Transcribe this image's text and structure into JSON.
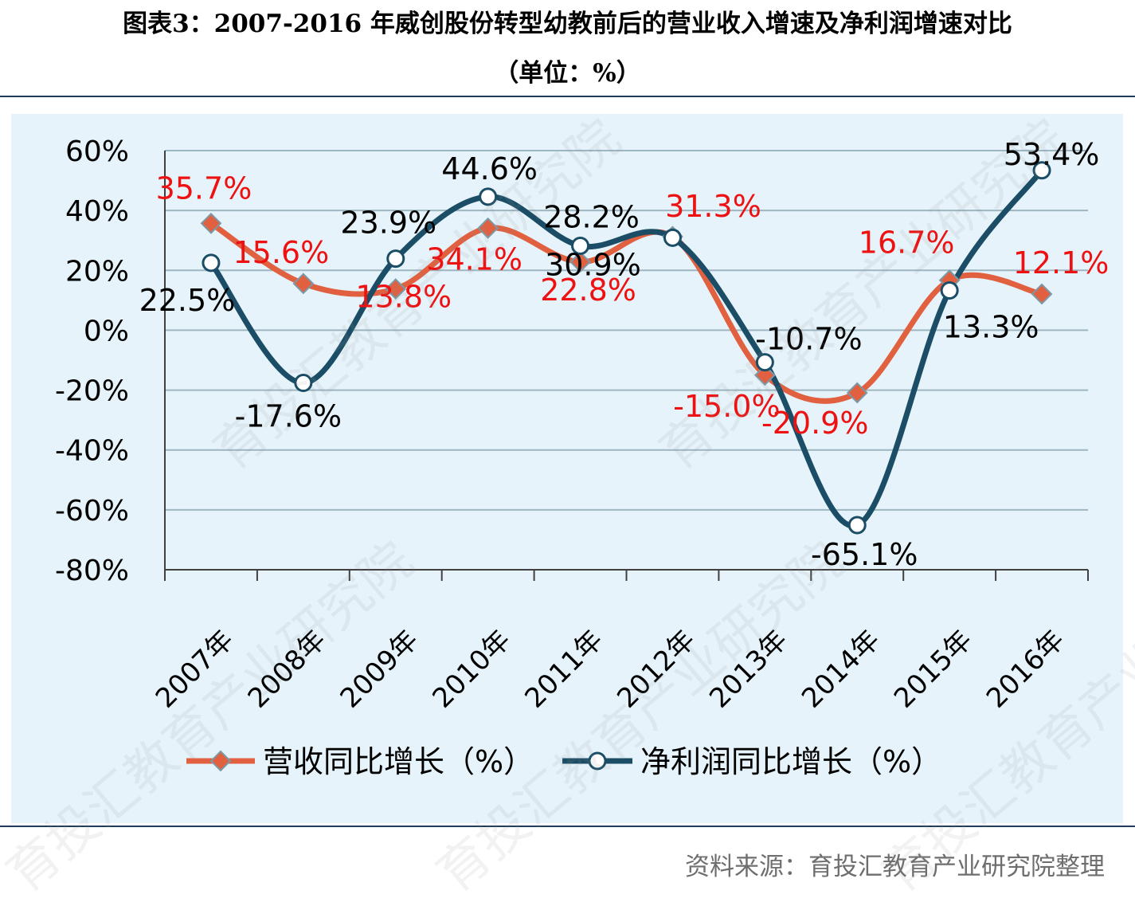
{
  "title_line1": "图表3：2007-2016 年威创股份转型幼教前后的营业收入增速及净利润增速对比",
  "title_line2": "（单位：%）",
  "source": "资料来源：育投汇教育产业研究院整理",
  "watermark": "育投汇教育产业研究院",
  "colors": {
    "panel_bg": "#e6f3fa",
    "revenue": "#e06040",
    "profit": "#1b4e66",
    "revenue_label": "#ee1111",
    "profit_label": "#000000",
    "grid": "#9eb6c2",
    "rule": "#1f3a5a"
  },
  "chart_data": {
    "type": "line",
    "categories": [
      "2007年",
      "2008年",
      "2009年",
      "2010年",
      "2011年",
      "2012年",
      "2013年",
      "2014年",
      "2015年",
      "2016年"
    ],
    "y_ticks": [
      "60%",
      "40%",
      "20%",
      "0%",
      "-20%",
      "-40%",
      "-60%",
      "-80%"
    ],
    "ylim": [
      -80,
      60
    ],
    "grid": true,
    "legend_position": "bottom",
    "series": [
      {
        "name": "营收同比增长（%）",
        "marker": "diamond",
        "values": [
          35.7,
          15.6,
          13.8,
          34.1,
          22.8,
          31.3,
          -15.0,
          -20.9,
          16.7,
          12.1
        ],
        "labels": [
          "35.7%",
          "15.6%",
          "13.8%",
          "34.1%",
          "22.8%",
          "31.3%",
          "-15.0%",
          "-20.9%",
          "16.7%",
          "12.1%"
        ]
      },
      {
        "name": "净利润同比增长（%）",
        "marker": "circle",
        "values": [
          22.5,
          -17.6,
          23.9,
          44.6,
          28.2,
          30.9,
          -10.7,
          -65.1,
          13.3,
          53.4
        ],
        "labels": [
          "22.5%",
          "-17.6%",
          "23.9%",
          "44.6%",
          "28.2%",
          "30.9%",
          "-10.7%",
          "-65.1%",
          "13.3%",
          "53.4%"
        ]
      }
    ]
  }
}
